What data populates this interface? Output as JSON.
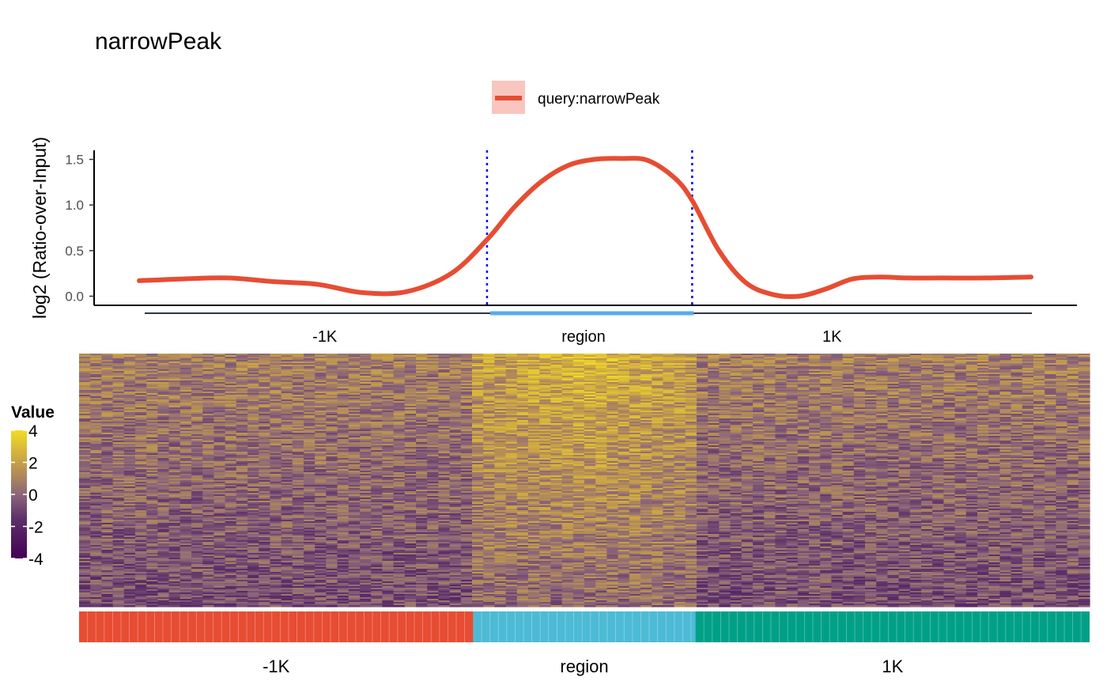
{
  "chart_data": [
    {
      "type": "line",
      "title": "narrowPeak",
      "ylabel": "log2 (Ratio-over-Input)",
      "ylim": [
        -0.1,
        1.6
      ],
      "yticks": [
        0.0,
        0.5,
        1.0,
        1.5
      ],
      "ytick_labels": [
        "0.0",
        "0.5",
        "1.0",
        "1.5"
      ],
      "legend": {
        "position": "top",
        "entries": [
          "query:narrowPeak"
        ]
      },
      "series": [
        {
          "name": "query:narrowPeak",
          "color": "#E64D33",
          "x": [
            0,
            5,
            10,
            15,
            20,
            25,
            30,
            35,
            39,
            42,
            45,
            48,
            51,
            54,
            57,
            60,
            62,
            65,
            68,
            71,
            74,
            77,
            80,
            83,
            86,
            90,
            95,
            100
          ],
          "y": [
            0.17,
            0.19,
            0.2,
            0.16,
            0.13,
            0.04,
            0.05,
            0.25,
            0.62,
            0.97,
            1.25,
            1.43,
            1.5,
            1.51,
            1.49,
            1.3,
            1.05,
            0.5,
            0.15,
            0.02,
            0.0,
            0.08,
            0.19,
            0.21,
            0.2,
            0.2,
            0.2,
            0.21
          ]
        }
      ],
      "boundaries": [
        39,
        62
      ],
      "boundary_color": "#0000FF",
      "grid": false
    },
    {
      "type": "heatmap",
      "legend_title": "Value",
      "scale": {
        "min": -4,
        "max": 4,
        "ticks": [
          4,
          2,
          0,
          -2,
          -4
        ],
        "colors": [
          "#440154",
          "#8C6679",
          "#E8C53A",
          "#F2DC26"
        ]
      },
      "segments": [
        {
          "label": "-1K",
          "color": "#E64D33"
        },
        {
          "label": "region",
          "color": "#4DBBD5"
        },
        {
          "label": "1K",
          "color": "#00A087"
        }
      ],
      "segment_fractions": [
        0.39,
        0.22,
        0.39
      ],
      "clipped_labels": [
        "-1K",
        "region",
        "1K"
      ],
      "region_colors": {
        "region": "#56ACEF",
        "flank": "#2D3640"
      }
    }
  ]
}
